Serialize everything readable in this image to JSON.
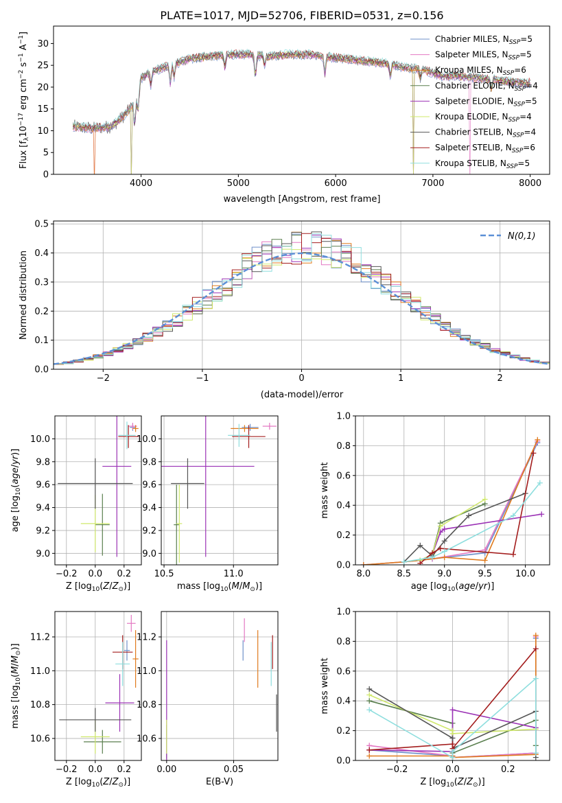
{
  "figure": {
    "title": "PLATE=1017, MJD=52706, FIBERID=0531, z=0.156"
  },
  "series_colors": {
    "Chabrier MILES": "#6d8fc9",
    "Salpeter MILES": "#e377c2",
    "Kroupa MILES": "#e07b1d",
    "Chabrier ELODIE": "#5a7f4e",
    "Salpeter ELODIE": "#9b32b5",
    "Kroupa ELODIE": "#cfe86a",
    "Chabrier STELIB": "#555555",
    "Salpeter STELIB": "#a31c1c",
    "Kroupa STELIB": "#8edede"
  },
  "chart_data": [
    {
      "id": "spectrum",
      "type": "line",
      "xlabel": "wavelength [Angstrom, rest frame]",
      "ylabel": "Flux [f_λ10^-17 erg cm^-2 s^-1 A^-1]",
      "xlim": [
        3100,
        8200
      ],
      "ylim": [
        0,
        34
      ],
      "xticks": [
        4000,
        5000,
        6000,
        7000,
        8000
      ],
      "yticks": [
        0,
        5,
        10,
        15,
        20,
        25,
        30
      ],
      "grid": false,
      "legend_position": "top-right",
      "legend": [
        {
          "name": "Chabrier MILES",
          "nssp": "5"
        },
        {
          "name": "Salpeter MILES",
          "nssp": "5"
        },
        {
          "name": "Kroupa MILES",
          "nssp": "6"
        },
        {
          "name": "Chabrier ELODIE",
          "nssp": "4"
        },
        {
          "name": "Salpeter ELODIE",
          "nssp": "5"
        },
        {
          "name": "Kroupa ELODIE",
          "nssp": "4"
        },
        {
          "name": "Chabrier STELIB",
          "nssp": "4"
        },
        {
          "name": "Salpeter STELIB",
          "nssp": "6"
        },
        {
          "name": "Kroupa STELIB",
          "nssp": "5"
        }
      ],
      "continuum": {
        "x": [
          3300,
          3500,
          3700,
          3850,
          3950,
          4000,
          4100,
          4300,
          4500,
          4700,
          4900,
          5100,
          5300,
          5500,
          5700,
          5900,
          6100,
          6300,
          6500,
          6700,
          6900,
          7100,
          7300,
          7500,
          7700,
          7900,
          8000
        ],
        "y": [
          11,
          10.5,
          11,
          14,
          17,
          22,
          23.5,
          25,
          26.5,
          27,
          27.5,
          27.5,
          27,
          27.5,
          27.5,
          27,
          26.5,
          26,
          25.5,
          24.5,
          24,
          22.5,
          22.5,
          22,
          21.5,
          21,
          21
        ]
      }
    },
    {
      "id": "residuals",
      "type": "step",
      "xlabel": "(data-model)/error",
      "ylabel": "Normed distribution",
      "xlim": [
        -2.5,
        2.5
      ],
      "ylim": [
        0,
        0.51
      ],
      "xticks": [
        -2,
        -1,
        0,
        1,
        2
      ],
      "yticks": [
        0.0,
        0.1,
        0.2,
        0.3,
        0.4,
        0.5
      ],
      "grid": true,
      "legend_position": "top-right",
      "gaussian_label": "N(0,1)",
      "gaussian_color": "#5b8fd6",
      "bin_width": 0.1
    },
    {
      "id": "age_vs_Z",
      "type": "errorbar",
      "xlabel": "Z [log10(Z/Z⊙)]",
      "ylabel": "age [log10(age/yr)]",
      "xlim": [
        -0.28,
        0.32
      ],
      "ylim": [
        8.9,
        10.2
      ],
      "xticks": [
        -0.2,
        0.0,
        0.2
      ],
      "xtick_labels": [
        "−0.2",
        "0.0",
        "0.2"
      ],
      "yticks": [
        9.0,
        9.2,
        9.4,
        9.6,
        9.8,
        10.0
      ],
      "points": [
        {
          "series": "Chabrier MILES",
          "x": 0.26,
          "xerr": 0.02,
          "y": 10.1,
          "yerr": 0.03
        },
        {
          "series": "Salpeter MILES",
          "x": 0.26,
          "xerr": 0.03,
          "y": 10.11,
          "yerr": 0.03
        },
        {
          "series": "Kroupa MILES",
          "x": 0.28,
          "xerr": 0.02,
          "y": 10.09,
          "yerr": 0.03
        },
        {
          "series": "Chabrier ELODIE",
          "x": 0.05,
          "xerr": 0.05,
          "y": 9.25,
          "yerr": 0.27
        },
        {
          "series": "Salpeter ELODIE",
          "x": 0.15,
          "xerr": 0.1,
          "y": 9.76,
          "yerr": 0.79
        },
        {
          "series": "Kroupa ELODIE",
          "x": 0.0,
          "xerr": 0.1,
          "y": 9.26,
          "yerr": 0.25
        },
        {
          "series": "Chabrier STELIB",
          "x": 0.0,
          "xerr": 0.26,
          "y": 9.61,
          "yerr": 0.22
        },
        {
          "series": "Salpeter STELIB",
          "x": 0.23,
          "xerr": 0.07,
          "y": 10.02,
          "yerr": 0.1
        },
        {
          "series": "Kroupa STELIB",
          "x": 0.22,
          "xerr": 0.06,
          "y": 10.03,
          "yerr": 0.12
        }
      ]
    },
    {
      "id": "age_vs_mass",
      "type": "errorbar",
      "xlabel": "mass [log10(M/M⊙)]",
      "xlim": [
        10.48,
        11.32
      ],
      "ylim": [
        8.9,
        10.2
      ],
      "xticks": [
        10.5,
        11.0
      ],
      "xtick_labels": [
        "10.5",
        "11.0"
      ],
      "yticks": [
        9.0,
        9.2,
        9.4,
        9.6,
        9.8,
        10.0
      ],
      "points": [
        {
          "series": "Chabrier MILES",
          "x": 11.12,
          "xerr": 0.06,
          "y": 10.1,
          "yerr": 0.03
        },
        {
          "series": "Salpeter MILES",
          "x": 11.26,
          "xerr": 0.05,
          "y": 10.11,
          "yerr": 0.03
        },
        {
          "series": "Kroupa MILES",
          "x": 11.08,
          "xerr": 0.1,
          "y": 10.09,
          "yerr": 0.03
        },
        {
          "series": "Chabrier ELODIE",
          "x": 10.59,
          "xerr": 0.02,
          "y": 9.25,
          "yerr": 0.35
        },
        {
          "series": "Salpeter ELODIE",
          "x": 10.8,
          "xerr": 0.35,
          "y": 9.76,
          "yerr": 0.79
        },
        {
          "series": "Kroupa ELODIE",
          "x": 10.61,
          "xerr": 0.02,
          "y": 9.26,
          "yerr": 0.34
        },
        {
          "series": "Chabrier STELIB",
          "x": 10.67,
          "xerr": 0.12,
          "y": 9.61,
          "yerr": 0.22
        },
        {
          "series": "Salpeter STELIB",
          "x": 11.11,
          "xerr": 0.12,
          "y": 10.02,
          "yerr": 0.1
        },
        {
          "series": "Kroupa STELIB",
          "x": 11.04,
          "xerr": 0.08,
          "y": 10.03,
          "yerr": 0.1
        }
      ]
    },
    {
      "id": "mass_weight_vs_age",
      "type": "line",
      "xlabel": "age [log10(age/yr)]",
      "ylabel": "mass weight",
      "xlim": [
        7.9,
        10.3
      ],
      "ylim": [
        0,
        1
      ],
      "xticks": [
        8.0,
        8.5,
        9.0,
        9.5,
        10.0
      ],
      "yticks": [
        0.0,
        0.2,
        0.4,
        0.6,
        0.8,
        1.0
      ],
      "grid": true,
      "series": [
        {
          "name": "Chabrier MILES",
          "x": [
            8.0,
            8.5,
            8.85,
            9.5,
            10.15
          ],
          "y": [
            0.0,
            0.02,
            0.04,
            0.08,
            0.82
          ]
        },
        {
          "name": "Salpeter MILES",
          "x": [
            8.0,
            8.5,
            8.85,
            9.5,
            10.15
          ],
          "y": [
            0.0,
            0.02,
            0.04,
            0.1,
            0.83
          ]
        },
        {
          "name": "Kroupa MILES",
          "x": [
            8.0,
            8.5,
            8.7,
            9.0,
            9.5,
            10.15
          ],
          "y": [
            0.0,
            0.02,
            0.03,
            0.05,
            0.03,
            0.84
          ]
        },
        {
          "name": "Chabrier ELODIE",
          "x": [
            8.7,
            8.85,
            8.95,
            9.5
          ],
          "y": [
            0.03,
            0.07,
            0.28,
            0.41
          ]
        },
        {
          "name": "Salpeter ELODIE",
          "x": [
            8.7,
            8.85,
            8.95,
            9.0,
            10.2
          ],
          "y": [
            0.03,
            0.07,
            0.22,
            0.24,
            0.34
          ]
        },
        {
          "name": "Kroupa ELODIE",
          "x": [
            8.7,
            8.85,
            8.95,
            9.5
          ],
          "y": [
            0.03,
            0.07,
            0.26,
            0.44
          ]
        },
        {
          "name": "Chabrier STELIB",
          "x": [
            8.5,
            8.7,
            8.85,
            9.0,
            9.3,
            10.0
          ],
          "y": [
            0.02,
            0.13,
            0.06,
            0.16,
            0.33,
            0.48
          ]
        },
        {
          "name": "Salpeter STELIB",
          "x": [
            8.7,
            8.85,
            8.95,
            9.85,
            10.1
          ],
          "y": [
            0.01,
            0.08,
            0.11,
            0.07,
            0.75
          ]
        },
        {
          "name": "Kroupa STELIB",
          "x": [
            8.5,
            8.85,
            9.0,
            9.85,
            10.18
          ],
          "y": [
            0.02,
            0.05,
            0.09,
            0.33,
            0.55
          ]
        }
      ]
    },
    {
      "id": "mass_vs_Z",
      "type": "errorbar",
      "xlabel": "Z [log10(Z/Z⊙)]",
      "ylabel": "mass [log10(M/M⊙)]",
      "xlim": [
        -0.28,
        0.32
      ],
      "ylim": [
        10.47,
        11.35
      ],
      "xticks": [
        -0.2,
        0.0,
        0.2
      ],
      "xtick_labels": [
        "−0.2",
        "0.0",
        "0.2"
      ],
      "yticks": [
        10.6,
        10.8,
        11.0,
        11.2
      ],
      "points": [
        {
          "series": "Chabrier MILES",
          "x": 0.22,
          "xerr": 0.02,
          "y": 11.12,
          "yerr": 0.06
        },
        {
          "series": "Salpeter MILES",
          "x": 0.25,
          "xerr": 0.03,
          "y": 11.28,
          "yerr": 0.05
        },
        {
          "series": "Kroupa MILES",
          "x": 0.28,
          "xerr": 0.02,
          "y": 11.07,
          "yerr": 0.17
        },
        {
          "series": "Chabrier ELODIE",
          "x": 0.05,
          "xerr": 0.13,
          "y": 10.58,
          "yerr": 0.07
        },
        {
          "series": "Salpeter ELODIE",
          "x": 0.17,
          "xerr": 0.1,
          "y": 10.81,
          "yerr": 0.17
        },
        {
          "series": "Kroupa ELODIE",
          "x": 0.0,
          "xerr": 0.1,
          "y": 10.61,
          "yerr": 0.1
        },
        {
          "series": "Chabrier STELIB",
          "x": 0.0,
          "xerr": 0.25,
          "y": 10.71,
          "yerr": 0.07
        },
        {
          "series": "Salpeter STELIB",
          "x": 0.19,
          "xerr": 0.07,
          "y": 11.11,
          "yerr": 0.1
        },
        {
          "series": "Kroupa STELIB",
          "x": 0.19,
          "xerr": 0.05,
          "y": 11.04,
          "yerr": 0.13
        }
      ]
    },
    {
      "id": "mass_vs_ebv",
      "type": "errorbar",
      "xlabel": "E(B-V)",
      "xlim": [
        -0.004,
        0.083
      ],
      "ylim": [
        10.47,
        11.35
      ],
      "xticks": [
        0.0,
        0.05
      ],
      "xtick_labels": [
        "0.00",
        "0.05"
      ],
      "yticks": [
        10.6,
        10.8,
        11.0,
        11.2
      ],
      "points": [
        {
          "series": "Chabrier MILES",
          "x": 0.057,
          "y": 11.12,
          "yerr": 0.06
        },
        {
          "series": "Salpeter MILES",
          "x": 0.058,
          "y": 11.24,
          "yerr": 0.07
        },
        {
          "series": "Kroupa MILES",
          "x": 0.068,
          "y": 11.07,
          "yerr": 0.17
        },
        {
          "series": "Chabrier ELODIE",
          "x": 0.0,
          "y": 10.58,
          "yerr": 0.1
        },
        {
          "series": "Salpeter ELODIE",
          "x": 0.0,
          "y": 10.81,
          "yerr": 0.37
        },
        {
          "series": "Kroupa ELODIE",
          "x": 0.0,
          "y": 10.61,
          "yerr": 0.1
        },
        {
          "series": "Chabrier STELIB",
          "x": 0.082,
          "y": 10.75,
          "yerr": 0.11
        },
        {
          "series": "Salpeter STELIB",
          "x": 0.079,
          "y": 11.11,
          "yerr": 0.1
        },
        {
          "series": "Kroupa STELIB",
          "x": 0.078,
          "y": 11.04,
          "yerr": 0.13
        }
      ]
    },
    {
      "id": "mass_weight_vs_Z",
      "type": "line",
      "xlabel": "Z [log10(Z/Z⊙)]",
      "ylabel": "mass weight",
      "xlim": [
        -0.35,
        0.35
      ],
      "ylim": [
        0,
        1
      ],
      "xticks": [
        -0.2,
        0.0,
        0.2
      ],
      "xtick_labels": [
        "−0.2",
        "0.0",
        "0.2"
      ],
      "yticks": [
        0.0,
        0.2,
        0.4,
        0.6,
        0.8,
        1.0
      ],
      "grid": true,
      "series": [
        {
          "name": "Chabrier MILES",
          "x": [
            -0.3,
            0.0,
            0.0,
            0.3,
            0.3
          ],
          "y": [
            0.07,
            0.03,
            0.02,
            0.05,
            0.82
          ]
        },
        {
          "name": "Salpeter MILES",
          "x": [
            -0.3,
            0.0,
            0.0,
            0.3,
            0.3
          ],
          "y": [
            0.1,
            0.03,
            0.02,
            0.05,
            0.83
          ]
        },
        {
          "name": "Kroupa MILES",
          "x": [
            -0.3,
            0.0,
            0.0,
            0.3,
            0.3
          ],
          "y": [
            0.03,
            0.03,
            0.02,
            0.04,
            0.84
          ]
        },
        {
          "name": "Chabrier ELODIE",
          "x": [
            -0.3,
            0.0,
            0.0,
            0.3,
            0.3
          ],
          "y": [
            0.4,
            0.25,
            0.05,
            0.27,
            0.1
          ]
        },
        {
          "name": "Salpeter ELODIE",
          "x": [
            -0.3,
            0.0,
            0.0,
            0.3
          ],
          "y": [
            0.07,
            0.06,
            0.34,
            0.22
          ]
        },
        {
          "name": "Kroupa ELODIE",
          "x": [
            -0.3,
            0.0,
            0.0,
            0.3
          ],
          "y": [
            0.44,
            0.2,
            0.18,
            0.21
          ]
        },
        {
          "name": "Chabrier STELIB",
          "x": [
            -0.3,
            0.0,
            0.0,
            0.3,
            0.3
          ],
          "y": [
            0.48,
            0.15,
            0.08,
            0.33,
            0.02
          ]
        },
        {
          "name": "Salpeter STELIB",
          "x": [
            -0.3,
            0.0,
            0.0,
            0.3
          ],
          "y": [
            0.07,
            0.11,
            0.08,
            0.75
          ]
        },
        {
          "name": "Kroupa STELIB",
          "x": [
            -0.3,
            0.0,
            0.0,
            0.3,
            0.3
          ],
          "y": [
            0.34,
            0.02,
            0.06,
            0.55,
            0.05
          ]
        }
      ]
    }
  ]
}
